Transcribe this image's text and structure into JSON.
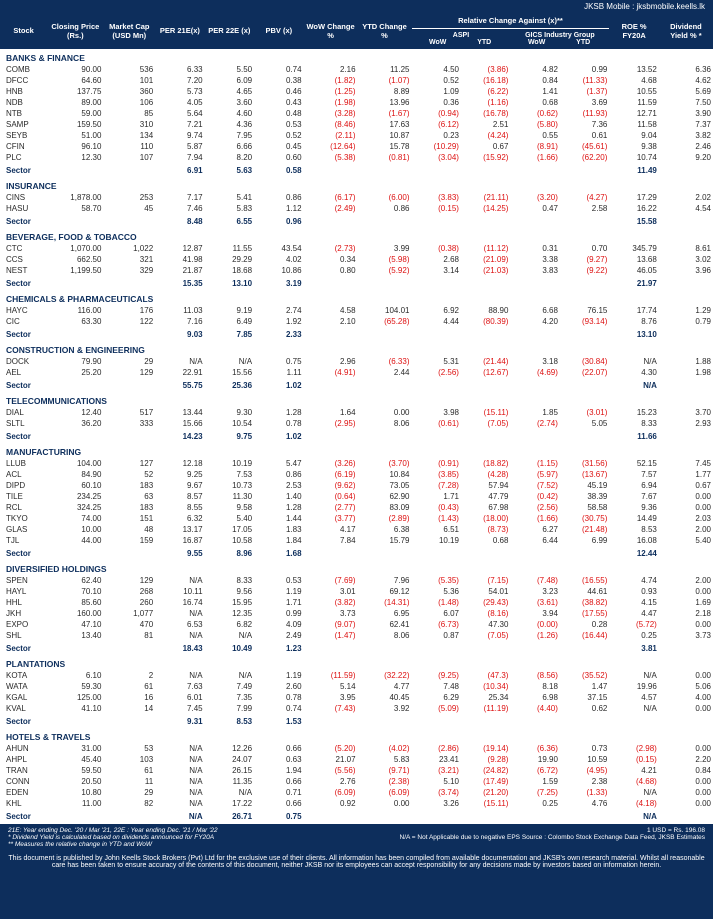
{
  "top_right": "JKSB Mobile : jksbmobile.keells.lk",
  "headers": {
    "stock": "Stock",
    "closing": "Closing Price (Rs.)",
    "mcap": "Market Cap (USD Mn)",
    "per21": "PER 21E(x)",
    "per22": "PER 22E (x)",
    "pbv": "PBV (x)",
    "wow": "WoW Change %",
    "ytd": "YTD Change %",
    "rel_super": "Relative Change Against (x)**",
    "aspi": "ASPI",
    "gics": "GICS Industry Group",
    "wow2": "WoW",
    "ytd2": "YTD",
    "roe": "ROE % FY20A",
    "div": "Dividend Yield % *"
  },
  "sections": [
    {
      "name": "BANKS & FINANCE",
      "rows": [
        [
          "COMB",
          "90.00",
          "536",
          "6.33",
          "5.50",
          "0.74",
          "2.16",
          "11.25",
          "4.50",
          "(3.86)",
          "4.82",
          "0.99",
          "13.52",
          "6.36"
        ],
        [
          "DFCC",
          "64.60",
          "101",
          "7.20",
          "6.09",
          "0.38",
          "(1.82)",
          "(1.07)",
          "0.52",
          "(16.18)",
          "0.84",
          "(11.33)",
          "4.68",
          "4.62"
        ],
        [
          "HNB",
          "137.75",
          "360",
          "5.73",
          "4.65",
          "0.46",
          "(1.25)",
          "8.89",
          "1.09",
          "(6.22)",
          "1.41",
          "(1.37)",
          "10.55",
          "5.69"
        ],
        [
          "NDB",
          "89.00",
          "106",
          "4.05",
          "3.60",
          "0.43",
          "(1.98)",
          "13.96",
          "0.36",
          "(1.16)",
          "0.68",
          "3.69",
          "11.59",
          "7.50"
        ],
        [
          "NTB",
          "59.00",
          "85",
          "5.64",
          "4.60",
          "0.48",
          "(3.28)",
          "(1.67)",
          "(0.94)",
          "(16.78)",
          "(0.62)",
          "(11.93)",
          "12.71",
          "3.90"
        ],
        [
          "SAMP",
          "159.50",
          "310",
          "7.21",
          "4.36",
          "0.53",
          "(8.46)",
          "17.63",
          "(6.12)",
          "2.51",
          "(5.80)",
          "7.36",
          "11.58",
          "7.37"
        ],
        [
          "SEYB",
          "51.00",
          "134",
          "9.74",
          "7.95",
          "0.52",
          "(2.11)",
          "10.87",
          "0.23",
          "(4.24)",
          "0.55",
          "0.61",
          "9.04",
          "3.82"
        ],
        [
          "CFIN",
          "96.10",
          "110",
          "5.87",
          "6.66",
          "0.45",
          "(12.64)",
          "15.78",
          "(10.29)",
          "0.67",
          "(8.91)",
          "(45.61)",
          "9.38",
          "2.46"
        ],
        [
          "PLC",
          "12.30",
          "107",
          "7.94",
          "8.20",
          "0.60",
          "(5.38)",
          "(0.81)",
          "(3.04)",
          "(15.92)",
          "(1.66)",
          "(62.20)",
          "10.74",
          "9.20"
        ]
      ],
      "sector": [
        "Sector",
        "",
        "",
        "6.91",
        "5.63",
        "0.58",
        "",
        "",
        "",
        "",
        "",
        "",
        "11.49",
        ""
      ]
    },
    {
      "name": "INSURANCE",
      "rows": [
        [
          "CINS",
          "1,878.00",
          "253",
          "7.17",
          "5.41",
          "0.86",
          "(6.17)",
          "(6.00)",
          "(3.83)",
          "(21.11)",
          "(3.20)",
          "(4.27)",
          "17.29",
          "2.02"
        ],
        [
          "HASU",
          "58.70",
          "45",
          "7.46",
          "5.83",
          "1.12",
          "(2.49)",
          "0.86",
          "(0.15)",
          "(14.25)",
          "0.47",
          "2.58",
          "16.22",
          "4.54"
        ]
      ],
      "sector": [
        "Sector",
        "",
        "",
        "8.48",
        "6.55",
        "0.96",
        "",
        "",
        "",
        "",
        "",
        "",
        "15.58",
        ""
      ]
    },
    {
      "name": "BEVERAGE, FOOD & TOBACCO",
      "rows": [
        [
          "CTC",
          "1,070.00",
          "1,022",
          "12.87",
          "11.55",
          "43.54",
          "(2.73)",
          "3.99",
          "(0.38)",
          "(11.12)",
          "0.31",
          "0.70",
          "345.79",
          "8.61"
        ],
        [
          "CCS",
          "662.50",
          "321",
          "41.98",
          "29.29",
          "4.02",
          "0.34",
          "(5.98)",
          "2.68",
          "(21.09)",
          "3.38",
          "(9.27)",
          "13.68",
          "3.02"
        ],
        [
          "NEST",
          "1,199.50",
          "329",
          "21.87",
          "18.68",
          "10.86",
          "0.80",
          "(5.92)",
          "3.14",
          "(21.03)",
          "3.83",
          "(9.22)",
          "46.05",
          "3.96"
        ]
      ],
      "sector": [
        "Sector",
        "",
        "",
        "15.35",
        "13.10",
        "3.19",
        "",
        "",
        "",
        "",
        "",
        "",
        "21.97",
        ""
      ]
    },
    {
      "name": "CHEMICALS & PHARMACEUTICALS",
      "rows": [
        [
          "HAYC",
          "116.00",
          "176",
          "11.03",
          "9.19",
          "2.74",
          "4.58",
          "104.01",
          "6.92",
          "88.90",
          "6.68",
          "76.15",
          "17.74",
          "1.29"
        ],
        [
          "CIC",
          "63.30",
          "122",
          "7.16",
          "6.49",
          "1.92",
          "2.10",
          "(65.28)",
          "4.44",
          "(80.39)",
          "4.20",
          "(93.14)",
          "8.76",
          "0.79"
        ]
      ],
      "sector": [
        "Sector",
        "",
        "",
        "9.03",
        "7.85",
        "2.33",
        "",
        "",
        "",
        "",
        "",
        "",
        "13.10",
        ""
      ]
    },
    {
      "name": "CONSTRUCTION & ENGINEERING",
      "rows": [
        [
          "DOCK",
          "79.90",
          "29",
          "N/A",
          "N/A",
          "0.75",
          "2.96",
          "(6.33)",
          "5.31",
          "(21.44)",
          "3.18",
          "(30.84)",
          "N/A",
          "1.88"
        ],
        [
          "AEL",
          "25.20",
          "129",
          "22.91",
          "15.56",
          "1.11",
          "(4.91)",
          "2.44",
          "(2.56)",
          "(12.67)",
          "(4.69)",
          "(22.07)",
          "4.30",
          "1.98"
        ]
      ],
      "sector": [
        "Sector",
        "",
        "",
        "55.75",
        "25.36",
        "1.02",
        "",
        "",
        "",
        "",
        "",
        "",
        "N/A",
        ""
      ]
    },
    {
      "name": "TELECOMMUNICATIONS",
      "rows": [
        [
          "DIAL",
          "12.40",
          "517",
          "13.44",
          "9.30",
          "1.28",
          "1.64",
          "0.00",
          "3.98",
          "(15.11)",
          "1.85",
          "(3.01)",
          "15.23",
          "3.70"
        ],
        [
          "SLTL",
          "36.20",
          "333",
          "15.66",
          "10.54",
          "0.78",
          "(2.95)",
          "8.06",
          "(0.61)",
          "(7.05)",
          "(2.74)",
          "5.05",
          "8.33",
          "2.93"
        ]
      ],
      "sector": [
        "Sector",
        "",
        "",
        "14.23",
        "9.75",
        "1.02",
        "",
        "",
        "",
        "",
        "",
        "",
        "11.66",
        ""
      ]
    },
    {
      "name": "MANUFACTURING",
      "rows": [
        [
          "LLUB",
          "104.00",
          "127",
          "12.18",
          "10.19",
          "5.47",
          "(3.26)",
          "(3.70)",
          "(0.91)",
          "(18.82)",
          "(1.15)",
          "(31.56)",
          "52.15",
          "7.45"
        ],
        [
          "ACL",
          "84.90",
          "52",
          "9.25",
          "7.53",
          "0.86",
          "(6.19)",
          "10.84",
          "(3.85)",
          "(4.28)",
          "(5.97)",
          "(13.67)",
          "7.57",
          "1.77"
        ],
        [
          "DIPD",
          "60.10",
          "183",
          "9.67",
          "10.73",
          "2.53",
          "(9.62)",
          "73.05",
          "(7.28)",
          "57.94",
          "(7.52)",
          "45.19",
          "6.94",
          "0.67"
        ],
        [
          "TILE",
          "234.25",
          "63",
          "8.57",
          "11.30",
          "1.40",
          "(0.64)",
          "62.90",
          "1.71",
          "47.79",
          "(0.42)",
          "38.39",
          "7.67",
          "0.00"
        ],
        [
          "RCL",
          "324.25",
          "183",
          "8.55",
          "9.58",
          "1.28",
          "(2.77)",
          "83.09",
          "(0.43)",
          "67.98",
          "(2.56)",
          "58.58",
          "9.36",
          "0.00"
        ],
        [
          "TKYO",
          "74.00",
          "151",
          "6.32",
          "5.40",
          "1.44",
          "(3.77)",
          "(2.89)",
          "(1.43)",
          "(18.00)",
          "(1.66)",
          "(30.75)",
          "14.49",
          "2.03"
        ],
        [
          "GLAS",
          "10.00",
          "48",
          "13.17",
          "17.05",
          "1.83",
          "4.17",
          "6.38",
          "6.51",
          "(8.73)",
          "6.27",
          "(21.48)",
          "8.53",
          "2.00"
        ],
        [
          "TJL",
          "44.00",
          "159",
          "16.87",
          "10.58",
          "1.84",
          "7.84",
          "15.79",
          "10.19",
          "0.68",
          "6.44",
          "6.99",
          "16.08",
          "5.40"
        ]
      ],
      "sector": [
        "Sector",
        "",
        "",
        "9.55",
        "8.96",
        "1.68",
        "",
        "",
        "",
        "",
        "",
        "",
        "12.44",
        ""
      ]
    },
    {
      "name": "DIVERSIFIED HOLDINGS",
      "rows": [
        [
          "SPEN",
          "62.40",
          "129",
          "N/A",
          "8.33",
          "0.53",
          "(7.69)",
          "7.96",
          "(5.35)",
          "(7.15)",
          "(7.48)",
          "(16.55)",
          "4.74",
          "2.00"
        ],
        [
          "HAYL",
          "70.10",
          "268",
          "10.11",
          "9.56",
          "1.19",
          "3.01",
          "69.12",
          "5.36",
          "54.01",
          "3.23",
          "44.61",
          "0.93",
          "0.00"
        ],
        [
          "HHL",
          "85.60",
          "260",
          "16.74",
          "15.95",
          "1.71",
          "(3.82)",
          "(14.31)",
          "(1.48)",
          "(29.43)",
          "(3.61)",
          "(38.82)",
          "4.15",
          "1.69"
        ],
        [
          "JKH",
          "160.00",
          "1,077",
          "N/A",
          "12.35",
          "0.99",
          "3.73",
          "6.95",
          "6.07",
          "(8.16)",
          "3.94",
          "(17.55)",
          "4.47",
          "2.18"
        ],
        [
          "EXPO",
          "47.10",
          "470",
          "6.53",
          "6.82",
          "4.09",
          "(9.07)",
          "62.41",
          "(6.73)",
          "47.30",
          "(0.00)",
          "0.28",
          "(5.72)",
          "0.00"
        ],
        [
          "SHL",
          "13.40",
          "81",
          "N/A",
          "N/A",
          "2.49",
          "(1.47)",
          "8.06",
          "0.87",
          "(7.05)",
          "(1.26)",
          "(16.44)",
          "0.25",
          "3.73"
        ]
      ],
      "sector": [
        "Sector",
        "",
        "",
        "18.43",
        "10.49",
        "1.23",
        "",
        "",
        "",
        "",
        "",
        "",
        "3.81",
        ""
      ]
    },
    {
      "name": "PLANTATIONS",
      "rows": [
        [
          "KOTA",
          "6.10",
          "2",
          "N/A",
          "N/A",
          "1.19",
          "(11.59)",
          "(32.22)",
          "(9.25)",
          "(47.3)",
          "(8.56)",
          "(35.52)",
          "N/A",
          "0.00"
        ],
        [
          "WATA",
          "59.30",
          "61",
          "7.63",
          "7.49",
          "2.60",
          "5.14",
          "4.77",
          "7.48",
          "(10.34)",
          "8.18",
          "1.47",
          "19.96",
          "5.06"
        ],
        [
          "KGAL",
          "125.00",
          "16",
          "6.01",
          "7.35",
          "0.78",
          "3.95",
          "40.45",
          "6.29",
          "25.34",
          "6.98",
          "37.15",
          "4.57",
          "4.00"
        ],
        [
          "KVAL",
          "41.10",
          "14",
          "7.45",
          "7.99",
          "0.74",
          "(7.43)",
          "3.92",
          "(5.09)",
          "(11.19)",
          "(4.40)",
          "0.62",
          "N/A",
          "0.00"
        ]
      ],
      "sector": [
        "Sector",
        "",
        "",
        "9.31",
        "8.53",
        "1.53",
        "",
        "",
        "",
        "",
        "",
        "",
        "",
        ""
      ]
    },
    {
      "name": "HOTELS & TRAVELS",
      "rows": [
        [
          "AHUN",
          "31.00",
          "53",
          "N/A",
          "12.26",
          "0.66",
          "(5.20)",
          "(4.02)",
          "(2.86)",
          "(19.14)",
          "(6.36)",
          "0.73",
          "(2.98)",
          "0.00"
        ],
        [
          "AHPL",
          "45.40",
          "103",
          "N/A",
          "24.07",
          "0.63",
          "21.07",
          "5.83",
          "23.41",
          "(9.28)",
          "19.90",
          "10.59",
          "(0.15)",
          "2.20"
        ],
        [
          "TRAN",
          "59.50",
          "61",
          "N/A",
          "26.15",
          "1.94",
          "(5.56)",
          "(9.71)",
          "(3.21)",
          "(24.82)",
          "(6.72)",
          "(4.95)",
          "4.21",
          "0.84"
        ],
        [
          "CONN",
          "20.50",
          "11",
          "N/A",
          "11.35",
          "0.66",
          "2.76",
          "(2.38)",
          "5.10",
          "(17.49)",
          "1.59",
          "2.38",
          "(4.68)",
          "0.00"
        ],
        [
          "EDEN",
          "10.80",
          "29",
          "N/A",
          "N/A",
          "0.71",
          "(6.09)",
          "(6.09)",
          "(3.74)",
          "(21.20)",
          "(7.25)",
          "(1.33)",
          "N/A",
          "0.00"
        ],
        [
          "KHL",
          "11.00",
          "82",
          "N/A",
          "17.22",
          "0.66",
          "0.92",
          "0.00",
          "3.26",
          "(15.11)",
          "0.25",
          "4.76",
          "(4.18)",
          "0.00"
        ]
      ],
      "sector": [
        "Sector",
        "",
        "",
        "N/A",
        "26.71",
        "0.75",
        "",
        "",
        "",
        "",
        "",
        "",
        "N/A",
        ""
      ]
    }
  ],
  "footnotes": {
    "left": [
      "21E: Year ending Dec. '20 / Mar '21, 22E : Year ending Dec. '21 / Mar '22",
      "* Dividend Yield is calculated based on dividends announced for FY20A",
      "** Measures the relative change in YTD and WoW"
    ],
    "right": [
      "1 USD = Rs. 196.08",
      "N/A = Not Applicable due to negative EPS          Source : Colombo Stock Exchange Data Feed, JKSB Estimates"
    ]
  },
  "disclaimer": "This document is published by John Keells Stock Brokers (Pvt) Ltd for the exclusive use of their clients. All information has been compiled from available documentation and JKSB's own research material. Whilst all reasonable care has been taken to ensure accuracy of the contents of this document, neither JKSB nor its employees can accept responsibility for any decisions made by investors based on information herein."
}
